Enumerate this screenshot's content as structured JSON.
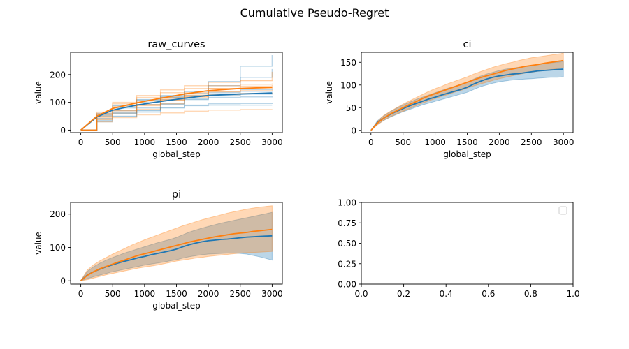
{
  "figure": {
    "title": "Cumulative Pseudo-Regret"
  },
  "colors": {
    "blue": "#1f77b4",
    "orange": "#ff7f0e",
    "axis": "#000000"
  },
  "chart_data": [
    {
      "type": "line",
      "title": "raw_curves",
      "xlabel": "global_step",
      "ylabel": "value",
      "xlim": [
        -160,
        3160
      ],
      "ylim": [
        -9,
        280
      ],
      "xticks": [
        0,
        500,
        1000,
        1500,
        2000,
        2500,
        3000
      ],
      "yticks": [
        0,
        100,
        200
      ],
      "series": [
        {
          "color": "#1f77b4",
          "values": [
            0,
            47,
            72,
            90,
            103,
            115,
            125,
            130,
            134
          ],
          "raw": [
            [
              0,
              52,
              88,
              110,
              125,
              140,
              160,
              190,
              220
            ],
            [
              0,
              40,
              62,
              80,
              95,
              110,
              118,
              120,
              122
            ],
            [
              0,
              35,
              50,
              65,
              80,
              90,
              95,
              96,
              97
            ],
            [
              0,
              60,
              90,
              108,
              120,
              132,
              140,
              146,
              150
            ],
            [
              0,
              30,
              48,
              70,
              92,
              112,
              125,
              130,
              133
            ],
            [
              0,
              55,
              80,
              100,
              118,
              140,
              175,
              230,
              270
            ],
            [
              0,
              42,
              60,
              72,
              82,
              88,
              90,
              90,
              90
            ],
            [
              0,
              48,
              70,
              92,
              110,
              125,
              135,
              140,
              142
            ]
          ]
        },
        {
          "color": "#ff7f0e",
          "values": [
            0,
            50,
            78,
            98,
            115,
            130,
            142,
            150,
            154
          ],
          "raw": [
            [
              0,
              60,
              95,
              118,
              135,
              150,
              160,
              165,
              168
            ],
            [
              0,
              45,
              70,
              90,
              108,
              120,
              128,
              132,
              135
            ],
            [
              0,
              38,
              58,
              75,
              95,
              120,
              150,
              180,
              210
            ],
            [
              0,
              55,
              85,
              105,
              118,
              130,
              138,
              142,
              145
            ],
            [
              0,
              30,
              45,
              55,
              62,
              68,
              72,
              74,
              75
            ],
            [
              0,
              65,
              100,
              125,
              145,
              160,
              172,
              178,
              180
            ],
            [
              0,
              40,
              65,
              88,
              108,
              125,
              140,
              150,
              155
            ],
            [
              0,
              50,
              72,
              92,
              112,
              135,
              150,
              158,
              162
            ]
          ]
        }
      ],
      "x": [
        0,
        250,
        500,
        875,
        1250,
        1625,
        2000,
        2500,
        3000
      ]
    },
    {
      "type": "line",
      "title": "ci",
      "xlabel": "global_step",
      "ylabel": "value",
      "xlim": [
        -150,
        3150
      ],
      "ylim": [
        -5,
        172
      ],
      "xticks": [
        0,
        500,
        1000,
        1500,
        2000,
        2500,
        3000
      ],
      "yticks": [
        0,
        50,
        100,
        150
      ],
      "x": [
        0,
        100,
        200,
        300,
        400,
        500,
        600,
        700,
        800,
        900,
        1000,
        1100,
        1200,
        1300,
        1400,
        1500,
        1600,
        1700,
        1800,
        1900,
        2000,
        2100,
        2200,
        2300,
        2400,
        2500,
        2600,
        2700,
        2800,
        2900,
        3000
      ],
      "series": [
        {
          "color": "#1f77b4",
          "values": [
            0,
            17,
            27,
            35,
            42,
            48,
            54,
            59,
            64,
            69,
            73,
            78,
            82,
            86,
            90,
            95,
            102,
            108,
            113,
            117,
            120,
            122,
            124,
            125,
            127,
            129,
            131,
            132,
            133,
            134,
            135
          ],
          "lower": [
            0,
            13,
            22,
            29,
            35,
            41,
            46,
            51,
            56,
            60,
            64,
            68,
            72,
            76,
            80,
            84,
            90,
            96,
            100,
            104,
            107,
            109,
            111,
            112,
            113,
            114,
            115,
            116,
            117,
            117,
            118
          ],
          "upper": [
            0,
            21,
            32,
            41,
            49,
            56,
            62,
            68,
            73,
            78,
            83,
            88,
            93,
            97,
            101,
            106,
            113,
            119,
            124,
            128,
            132,
            135,
            137,
            139,
            141,
            143,
            145,
            147,
            149,
            150,
            152
          ]
        },
        {
          "color": "#ff7f0e",
          "values": [
            0,
            16,
            27,
            36,
            43,
            50,
            57,
            63,
            70,
            76,
            81,
            86,
            91,
            96,
            101,
            106,
            111,
            116,
            120,
            124,
            128,
            132,
            135,
            138,
            141,
            143,
            145,
            148,
            150,
            152,
            154
          ],
          "lower": [
            0,
            12,
            22,
            30,
            36,
            42,
            48,
            54,
            60,
            65,
            70,
            75,
            79,
            84,
            88,
            93,
            98,
            102,
            106,
            110,
            114,
            117,
            120,
            123,
            126,
            128,
            130,
            132,
            134,
            136,
            138
          ],
          "upper": [
            0,
            20,
            33,
            42,
            50,
            58,
            65,
            72,
            79,
            86,
            92,
            97,
            103,
            108,
            113,
            118,
            124,
            129,
            134,
            139,
            143,
            147,
            150,
            154,
            157,
            160,
            162,
            164,
            166,
            168,
            170
          ]
        }
      ]
    },
    {
      "type": "line",
      "title": "pi",
      "xlabel": "global_step",
      "ylabel": "value",
      "xlim": [
        -160,
        3160
      ],
      "ylim": [
        -10,
        235
      ],
      "xticks": [
        0,
        500,
        1000,
        1500,
        2000,
        2500,
        3000
      ],
      "yticks": [
        0,
        100,
        200
      ],
      "x": [
        0,
        100,
        200,
        300,
        400,
        500,
        600,
        700,
        800,
        900,
        1000,
        1100,
        1200,
        1300,
        1400,
        1500,
        1600,
        1700,
        1800,
        1900,
        2000,
        2100,
        2200,
        2300,
        2400,
        2500,
        2600,
        2700,
        2800,
        2900,
        3000
      ],
      "series": [
        {
          "color": "#1f77b4",
          "values": [
            0,
            17,
            27,
            35,
            42,
            48,
            54,
            59,
            64,
            69,
            73,
            78,
            82,
            86,
            90,
            95,
            102,
            108,
            113,
            117,
            120,
            122,
            124,
            125,
            127,
            129,
            131,
            132,
            133,
            134,
            135
          ],
          "lower": [
            0,
            6,
            12,
            17,
            22,
            27,
            31,
            35,
            39,
            43,
            47,
            50,
            53,
            56,
            60,
            63,
            68,
            72,
            75,
            78,
            80,
            81,
            82,
            83,
            83,
            82,
            80,
            76,
            72,
            67,
            62
          ],
          "upper": [
            0,
            28,
            42,
            53,
            62,
            70,
            77,
            84,
            90,
            96,
            102,
            108,
            114,
            119,
            124,
            130,
            138,
            146,
            152,
            158,
            163,
            168,
            173,
            177,
            181,
            185,
            189,
            193,
            197,
            201,
            205
          ]
        },
        {
          "color": "#ff7f0e",
          "values": [
            0,
            16,
            27,
            36,
            43,
            50,
            57,
            63,
            70,
            76,
            81,
            86,
            91,
            96,
            101,
            106,
            111,
            116,
            120,
            124,
            128,
            132,
            135,
            138,
            141,
            143,
            145,
            148,
            150,
            152,
            154
          ],
          "lower": [
            0,
            3,
            8,
            13,
            18,
            22,
            26,
            30,
            34,
            38,
            41,
            44,
            47,
            51,
            55,
            59,
            62,
            65,
            68,
            70,
            73,
            75,
            77,
            79,
            81,
            83,
            84,
            85,
            86,
            87,
            88
          ],
          "upper": [
            0,
            32,
            48,
            60,
            70,
            80,
            89,
            98,
            107,
            115,
            123,
            130,
            137,
            144,
            151,
            158,
            165,
            171,
            177,
            183,
            188,
            193,
            198,
            203,
            207,
            211,
            215,
            218,
            221,
            223,
            225
          ]
        }
      ]
    },
    {
      "type": "line",
      "title": "",
      "xlabel": "",
      "ylabel": "",
      "xlim": [
        0,
        1
      ],
      "ylim": [
        0,
        1
      ],
      "xticks": [
        0.0,
        0.2,
        0.4,
        0.6,
        0.8,
        1.0
      ],
      "yticks": [
        0.0,
        0.25,
        0.5,
        0.75,
        1.0
      ],
      "xtick_labels": [
        "0.0",
        "0.2",
        "0.4",
        "0.6",
        "0.8",
        "1.0"
      ],
      "ytick_labels": [
        "0.00",
        "0.25",
        "0.50",
        "0.75",
        "1.00"
      ],
      "legend": "top-right",
      "series": []
    }
  ]
}
